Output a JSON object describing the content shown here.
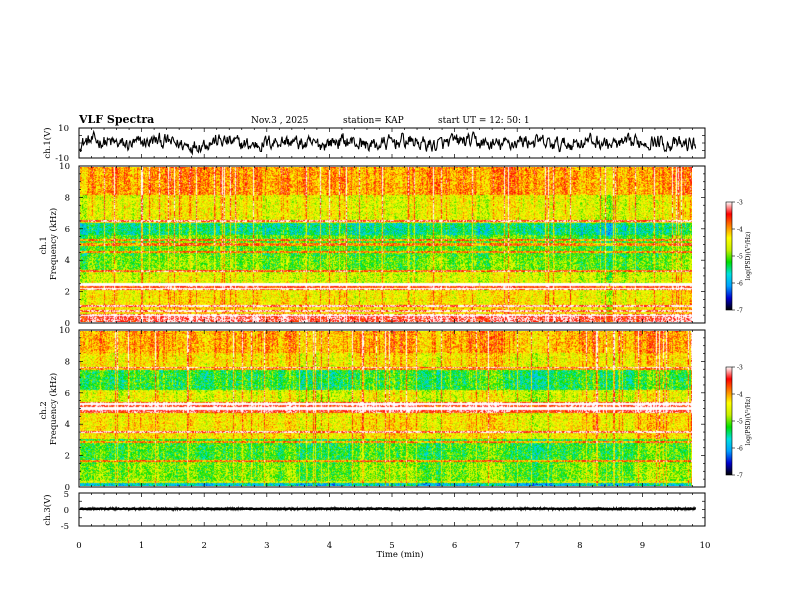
{
  "header": {
    "title": "VLF Spectra",
    "date": "Nov.3  , 2025",
    "station": "station= KAP",
    "start": "start  UT  =    12: 50: 1"
  },
  "chart_data": [
    {
      "type": "line",
      "name": "ch1-waveform",
      "ylabel": "ch.1(V)",
      "ylim": [
        -10,
        10
      ],
      "yticks": [
        "10",
        "-10"
      ],
      "xlim": [
        0,
        10
      ],
      "amplitude": 5
    },
    {
      "type": "heatmap",
      "name": "ch1-spectrogram",
      "ylabel": "ch.1\nFrequency  (kHz)",
      "ylim": [
        0,
        10
      ],
      "yticks": [
        "0",
        "2",
        "4",
        "6",
        "8",
        "10"
      ],
      "xlim": [
        0,
        9.85
      ],
      "colorbar": {
        "min": -7,
        "max": -3,
        "ticks": [
          "-3",
          "-4",
          "-5",
          "-6",
          "-7"
        ],
        "label": "log(PSD)(V²/Hz)"
      },
      "bands": [
        {
          "f": [
            0,
            0.4
          ],
          "level": -3.3
        },
        {
          "f": [
            0.4,
            1.2
          ],
          "level": -4.3
        },
        {
          "f": [
            1.2,
            2.1
          ],
          "level": -4.4
        },
        {
          "f": [
            2.1,
            2.5
          ],
          "level": -3.6
        },
        {
          "f": [
            2.5,
            3.3
          ],
          "level": -4.6
        },
        {
          "f": [
            3.3,
            4.2
          ],
          "level": -5.0
        },
        {
          "f": [
            4.2,
            5.6
          ],
          "level": -5.1
        },
        {
          "f": [
            5.6,
            6.4
          ],
          "level": -5.5
        },
        {
          "f": [
            6.4,
            8.2
          ],
          "level": -4.5
        },
        {
          "f": [
            8.2,
            10
          ],
          "level": -4.0
        }
      ],
      "lines_khz": [
        0.4,
        0.7,
        1.0,
        2.1,
        2.4,
        3.3,
        4.5,
        5.0,
        5.3,
        6.5
      ]
    },
    {
      "type": "heatmap",
      "name": "ch2-spectrogram",
      "ylabel": "ch.2\nFrequency  (kHz)",
      "ylim": [
        0,
        10
      ],
      "yticks": [
        "0",
        "2",
        "4",
        "6",
        "8",
        "10"
      ],
      "xlim": [
        0,
        9.85
      ],
      "colorbar": {
        "min": -7,
        "max": -3,
        "ticks": [
          "-3",
          "-4",
          "-5",
          "-6",
          "-7"
        ],
        "label": "log(PSD)(V²/Hz)"
      },
      "bands": [
        {
          "f": [
            0,
            0.3
          ],
          "level": -5.8
        },
        {
          "f": [
            0.3,
            1.6
          ],
          "level": -5.0
        },
        {
          "f": [
            1.6,
            3.0
          ],
          "level": -5.2
        },
        {
          "f": [
            3.0,
            4.7
          ],
          "level": -4.4
        },
        {
          "f": [
            4.7,
            5.4
          ],
          "level": -3.4
        },
        {
          "f": [
            5.4,
            6.2
          ],
          "level": -4.6
        },
        {
          "f": [
            6.2,
            7.6
          ],
          "level": -5.3
        },
        {
          "f": [
            7.6,
            8.6
          ],
          "level": -4.4
        },
        {
          "f": [
            8.6,
            10
          ],
          "level": -4.1
        }
      ],
      "lines_khz": [
        0.2,
        1.6,
        2.8,
        3.5,
        5.0,
        5.3,
        7.6
      ]
    },
    {
      "type": "line",
      "name": "ch3-waveform",
      "ylabel": "ch.3(V)",
      "ylim": [
        -5,
        5
      ],
      "yticks": [
        "5",
        "0",
        "-5"
      ],
      "xlim": [
        0,
        10
      ],
      "xlabel": "Time  (min)",
      "xticks": [
        "0",
        "1",
        "2",
        "3",
        "4",
        "5",
        "6",
        "7",
        "8",
        "9",
        "10"
      ],
      "offset": 0.2,
      "amplitude": 0.4
    }
  ],
  "colors": {
    "cmap": [
      "#000000",
      "#0000d0",
      "#00a0ff",
      "#00e0e0",
      "#00e000",
      "#c8f000",
      "#ffff00",
      "#ff8000",
      "#ff0000",
      "#ffffff"
    ]
  }
}
